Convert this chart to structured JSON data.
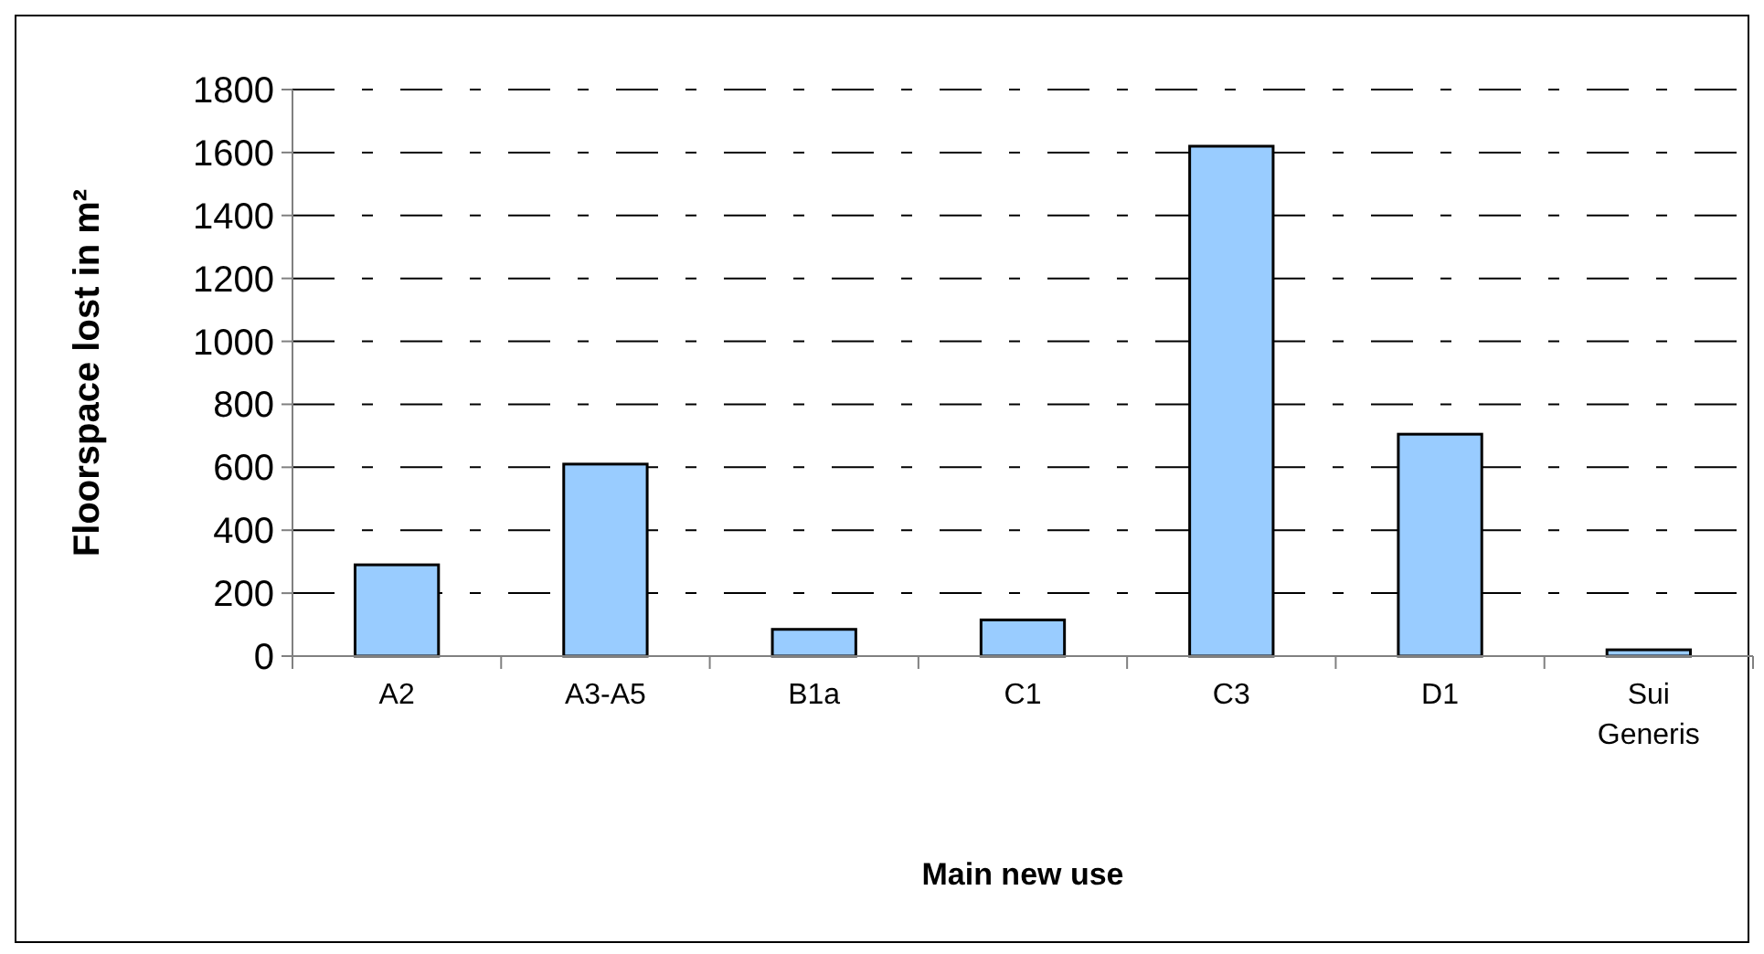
{
  "chart_data": {
    "type": "bar",
    "xlabel": "Main new use",
    "ylabel": "Floorspace lost in m²",
    "categories": [
      "A2",
      "A3-A5",
      "B1a",
      "C1",
      "C3",
      "D1",
      "Sui Generis"
    ],
    "values": [
      290,
      610,
      85,
      115,
      1620,
      705,
      20
    ],
    "color": "#99ccff",
    "ylim": [
      0,
      1800
    ],
    "yticks": [
      0,
      200,
      400,
      600,
      800,
      1000,
      1200,
      1400,
      1600,
      1800
    ],
    "grid": "y"
  }
}
